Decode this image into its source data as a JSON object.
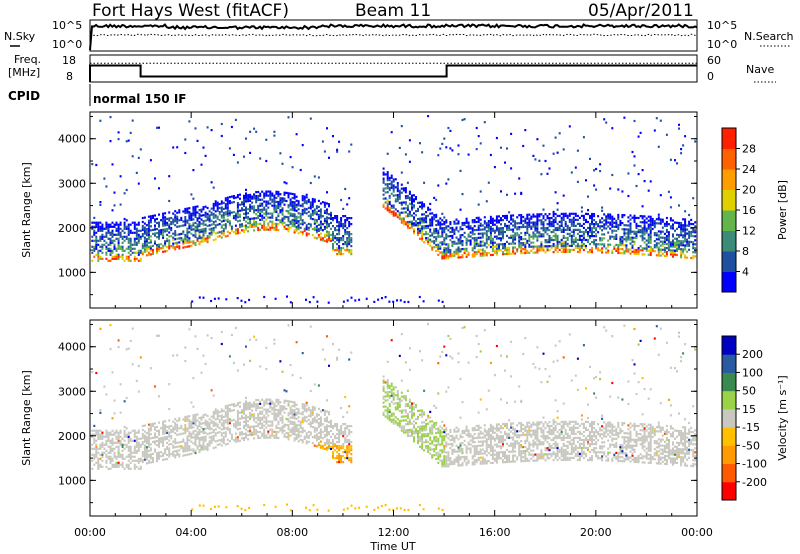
{
  "header": {
    "station": "Fort Hays West (fitACF)",
    "beam": "Beam 11",
    "date": "05/Apr/2011"
  },
  "noise_panel": {
    "left_label": "N.Sky",
    "left_ticks": [
      "10^5",
      "10^0"
    ],
    "right_label": "N.Search",
    "right_ticks": [
      "10^5",
      "10^0"
    ]
  },
  "freq_panel": {
    "left_label_1": "Freq.",
    "left_label_2": "[MHz]",
    "left_ticks": [
      "18",
      "8"
    ],
    "right_label": "Nave",
    "right_ticks": [
      "60",
      "0"
    ]
  },
  "cpid": {
    "label": "CPID",
    "value": "normal 150 IF"
  },
  "colors": {
    "power_scale": [
      "#0000ff",
      "#1f4fa0",
      "#3c8a78",
      "#63b44a",
      "#e0d000",
      "#ff9c00",
      "#ff6000",
      "#ff2000"
    ],
    "velocity_scale": [
      "#ff0000",
      "#ff5a00",
      "#ff9a00",
      "#ffc000",
      "#c8c8c0",
      "#9ad24a",
      "#3a8a50",
      "#2a5aa0",
      "#0000c0"
    ]
  },
  "chart_data": [
    {
      "type": "heatmap",
      "name": "power-panel",
      "ylabel": "Slant Range [km]",
      "yticks": [
        "4000",
        "3000",
        "2000",
        "1000"
      ],
      "ylim": [
        200,
        4600
      ],
      "xlim": [
        "00:00",
        "24:00"
      ],
      "colorbar": {
        "label": "Power [dB]",
        "ticks": [
          "28",
          "24",
          "20",
          "16",
          "12",
          "8",
          "4"
        ],
        "range": [
          0,
          32
        ]
      }
    },
    {
      "type": "heatmap",
      "name": "velocity-panel",
      "ylabel": "Slant Range [km]",
      "yticks": [
        "4000",
        "3000",
        "2000",
        "1000"
      ],
      "ylim": [
        200,
        4600
      ],
      "xlim": [
        "00:00",
        "24:00"
      ],
      "colorbar": {
        "label": "Velocity [m s⁻¹]",
        "ticks": [
          "200",
          "100",
          "50",
          "15",
          "-15",
          "-50",
          "-100",
          "-200"
        ],
        "range": [
          -250,
          250
        ]
      }
    }
  ],
  "xaxis": {
    "ticks": [
      "00:00",
      "04:00",
      "08:00",
      "12:00",
      "16:00",
      "20:00",
      "00:00"
    ],
    "label": "Time UT"
  }
}
